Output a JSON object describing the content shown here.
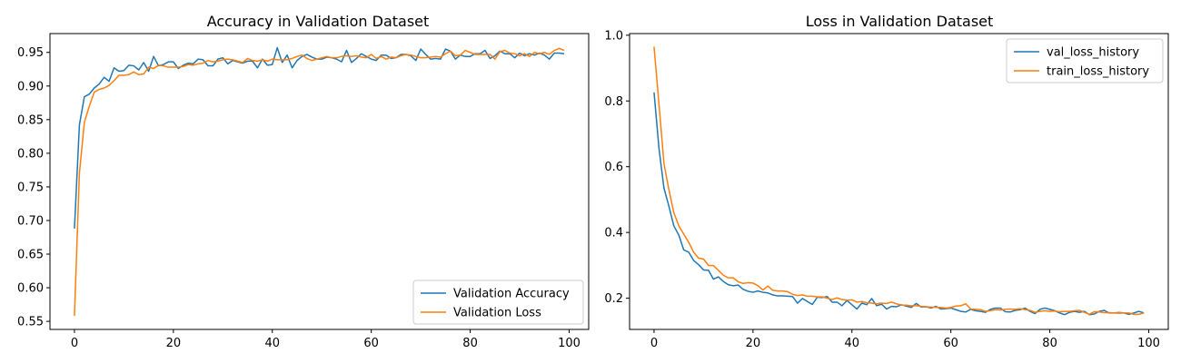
{
  "chart_data": [
    {
      "type": "line",
      "title": "Accuracy in Validation Dataset",
      "xlabel": "",
      "ylabel": "",
      "xlim": [
        -4.95,
        103.95
      ],
      "ylim": [
        0.538,
        0.978
      ],
      "xticks": [
        0,
        20,
        40,
        60,
        80,
        100
      ],
      "yticks": [
        0.55,
        0.6,
        0.65,
        0.7,
        0.75,
        0.8,
        0.85,
        0.9,
        0.95
      ],
      "xtick_labels": [
        "0",
        "20",
        "40",
        "60",
        "80",
        "100"
      ],
      "ytick_labels": [
        "0.55",
        "0.60",
        "0.65",
        "0.70",
        "0.75",
        "0.80",
        "0.85",
        "0.90",
        "0.95"
      ],
      "legend_position": "lower-right",
      "series": [
        {
          "name": "Validation Accuracy",
          "color": "#1f77b4",
          "values": [
            0.688,
            0.842,
            0.884,
            0.888,
            0.897,
            0.903,
            0.913,
            0.907,
            0.927,
            0.922,
            0.923,
            0.931,
            0.93,
            0.924,
            0.935,
            0.922,
            0.944,
            0.93,
            0.932,
            0.936,
            0.936,
            0.926,
            0.931,
            0.934,
            0.933,
            0.94,
            0.939,
            0.93,
            0.93,
            0.94,
            0.942,
            0.933,
            0.938,
            0.936,
            0.934,
            0.937,
            0.937,
            0.927,
            0.94,
            0.931,
            0.932,
            0.957,
            0.935,
            0.946,
            0.927,
            0.938,
            0.944,
            0.947,
            0.943,
            0.94,
            0.94,
            0.943,
            0.942,
            0.94,
            0.936,
            0.953,
            0.935,
            0.941,
            0.948,
            0.944,
            0.94,
            0.938,
            0.946,
            0.946,
            0.941,
            0.942,
            0.947,
            0.947,
            0.945,
            0.938,
            0.955,
            0.947,
            0.94,
            0.941,
            0.94,
            0.955,
            0.952,
            0.94,
            0.946,
            0.944,
            0.944,
            0.948,
            0.948,
            0.953,
            0.941,
            0.945,
            0.952,
            0.948,
            0.948,
            0.942,
            0.949,
            0.945,
            0.948,
            0.946,
            0.949,
            0.946,
            0.94,
            0.949,
            0.949,
            0.948
          ]
        },
        {
          "name": "Validation Loss",
          "color": "#ff7f0e",
          "values": [
            0.558,
            0.77,
            0.846,
            0.87,
            0.891,
            0.895,
            0.897,
            0.901,
            0.908,
            0.916,
            0.916,
            0.917,
            0.921,
            0.917,
            0.918,
            0.928,
            0.926,
            0.931,
            0.93,
            0.928,
            0.928,
            0.928,
            0.929,
            0.932,
            0.931,
            0.933,
            0.934,
            0.938,
            0.936,
            0.937,
            0.939,
            0.94,
            0.939,
            0.937,
            0.935,
            0.941,
            0.938,
            0.937,
            0.939,
            0.937,
            0.94,
            0.939,
            0.939,
            0.939,
            0.941,
            0.944,
            0.946,
            0.941,
            0.938,
            0.94,
            0.942,
            0.944,
            0.942,
            0.942,
            0.944,
            0.945,
            0.944,
            0.945,
            0.943,
            0.942,
            0.947,
            0.941,
            0.944,
            0.94,
            0.943,
            0.942,
            0.945,
            0.947,
            0.946,
            0.944,
            0.942,
            0.942,
            0.943,
            0.944,
            0.943,
            0.948,
            0.952,
            0.945,
            0.946,
            0.953,
            0.95,
            0.947,
            0.947,
            0.947,
            0.947,
            0.94,
            0.951,
            0.953,
            0.949,
            0.948,
            0.945,
            0.948,
            0.944,
            0.95,
            0.948,
            0.95,
            0.947,
            0.953,
            0.956,
            0.953
          ]
        }
      ]
    },
    {
      "type": "line",
      "title": "Loss in Validation Dataset",
      "xlabel": "",
      "ylabel": "",
      "xlim": [
        -4.95,
        103.95
      ],
      "ylim": [
        0.105,
        1.005
      ],
      "xticks": [
        0,
        20,
        40,
        60,
        80,
        100
      ],
      "yticks": [
        0.2,
        0.4,
        0.6,
        0.8,
        1.0
      ],
      "xtick_labels": [
        "0",
        "20",
        "40",
        "60",
        "80",
        "100"
      ],
      "ytick_labels": [
        "0.2",
        "0.4",
        "0.6",
        "0.8",
        "1.0"
      ],
      "legend_position": "upper-right",
      "series": [
        {
          "name": "val_loss_history",
          "color": "#1f77b4",
          "values": [
            0.826,
            0.655,
            0.535,
            0.48,
            0.42,
            0.392,
            0.347,
            0.34,
            0.315,
            0.302,
            0.286,
            0.285,
            0.258,
            0.265,
            0.251,
            0.241,
            0.238,
            0.24,
            0.227,
            0.221,
            0.218,
            0.222,
            0.218,
            0.216,
            0.21,
            0.207,
            0.207,
            0.206,
            0.205,
            0.185,
            0.199,
            0.19,
            0.181,
            0.203,
            0.202,
            0.205,
            0.188,
            0.188,
            0.177,
            0.193,
            0.18,
            0.167,
            0.185,
            0.18,
            0.199,
            0.177,
            0.182,
            0.167,
            0.175,
            0.174,
            0.18,
            0.176,
            0.172,
            0.184,
            0.173,
            0.174,
            0.17,
            0.175,
            0.167,
            0.168,
            0.17,
            0.165,
            0.16,
            0.158,
            0.166,
            0.162,
            0.16,
            0.157,
            0.166,
            0.17,
            0.17,
            0.159,
            0.158,
            0.163,
            0.165,
            0.17,
            0.16,
            0.153,
            0.166,
            0.17,
            0.166,
            0.162,
            0.155,
            0.15,
            0.157,
            0.16,
            0.157,
            0.16,
            0.15,
            0.152,
            0.16,
            0.163,
            0.155,
            0.155,
            0.155,
            0.155,
            0.151,
            0.155,
            0.16,
            0.155
          ]
        },
        {
          "name": "train_loss_history",
          "color": "#ff7f0e",
          "values": [
            0.965,
            0.79,
            0.61,
            0.53,
            0.46,
            0.42,
            0.395,
            0.37,
            0.34,
            0.322,
            0.319,
            0.3,
            0.299,
            0.285,
            0.27,
            0.262,
            0.262,
            0.25,
            0.245,
            0.247,
            0.246,
            0.238,
            0.225,
            0.237,
            0.224,
            0.222,
            0.222,
            0.22,
            0.212,
            0.208,
            0.21,
            0.206,
            0.206,
            0.204,
            0.204,
            0.2,
            0.196,
            0.201,
            0.196,
            0.194,
            0.195,
            0.188,
            0.19,
            0.186,
            0.185,
            0.183,
            0.185,
            0.184,
            0.188,
            0.183,
            0.179,
            0.179,
            0.177,
            0.177,
            0.175,
            0.174,
            0.173,
            0.172,
            0.172,
            0.17,
            0.172,
            0.176,
            0.177,
            0.183,
            0.167,
            0.166,
            0.165,
            0.16,
            0.162,
            0.165,
            0.164,
            0.166,
            0.167,
            0.166,
            0.168,
            0.165,
            0.163,
            0.157,
            0.16,
            0.162,
            0.16,
            0.161,
            0.159,
            0.16,
            0.16,
            0.162,
            0.163,
            0.157,
            0.151,
            0.159,
            0.158,
            0.156,
            0.156,
            0.155,
            0.157,
            0.155,
            0.155,
            0.151,
            0.151,
            0.155
          ]
        }
      ]
    }
  ]
}
